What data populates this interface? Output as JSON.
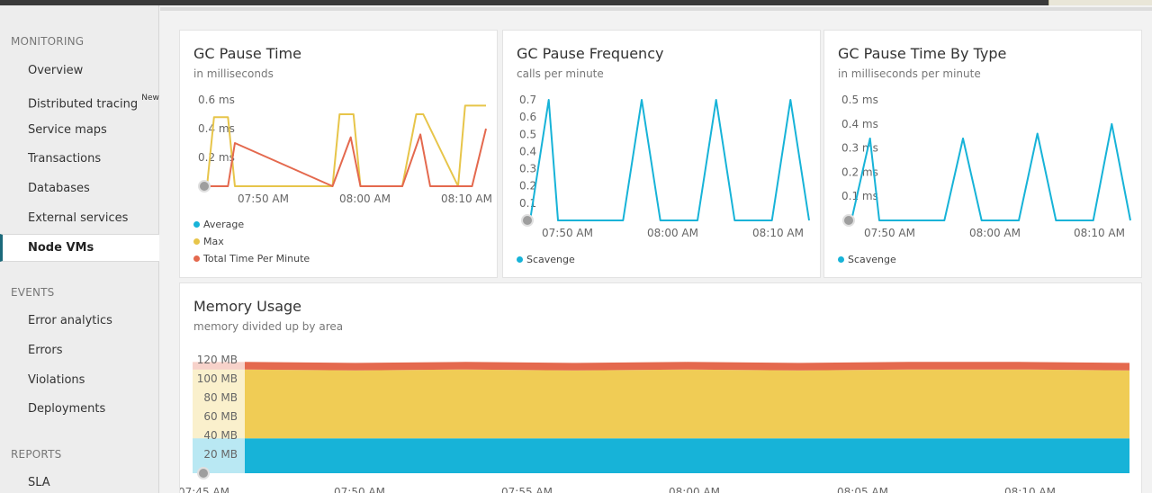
{
  "sidebar": {
    "sections": [
      {
        "title": "MONITORING",
        "items": [
          {
            "label": "Overview"
          },
          {
            "label": "Distributed tracing",
            "badge": "New"
          },
          {
            "label": "Service maps"
          },
          {
            "label": "Transactions"
          },
          {
            "label": "Databases"
          },
          {
            "label": "External services"
          },
          {
            "label": "Node VMs",
            "active": true
          }
        ]
      },
      {
        "title": "EVENTS",
        "items": [
          {
            "label": "Error analytics"
          },
          {
            "label": "Errors"
          },
          {
            "label": "Violations"
          },
          {
            "label": "Deployments"
          }
        ]
      },
      {
        "title": "REPORTS",
        "items": [
          {
            "label": "SLA"
          }
        ]
      }
    ]
  },
  "charts": {
    "gc_pause_time": {
      "title": "GC Pause Time",
      "subtitle": "in milliseconds"
    },
    "gc_pause_frequency": {
      "title": "GC Pause Frequency",
      "subtitle": "calls per minute"
    },
    "gc_pause_by_type": {
      "title": "GC Pause Time By Type",
      "subtitle": "in milliseconds per minute"
    },
    "memory_usage": {
      "title": "Memory Usage",
      "subtitle": "memory divided up by area"
    }
  },
  "chart_data": [
    {
      "id": "gc_pause_time",
      "type": "line",
      "title": "GC Pause Time",
      "subtitle": "in milliseconds",
      "x_ticks": [
        "07:50 AM",
        "08:00 AM",
        "08:10 AM"
      ],
      "y_ticks": [
        "0.2 ms",
        "0.4 ms",
        "0.6 ms"
      ],
      "ylim": [
        0,
        0.6
      ],
      "series": [
        {
          "name": "Average",
          "color": "#17b3d8",
          "x": [],
          "values": []
        },
        {
          "name": "Max",
          "color": "#e7c54a",
          "x": [
            0,
            0.5,
            1,
            1.5,
            2,
            9,
            9.5,
            10.5,
            11,
            14,
            15,
            15.5,
            18,
            18.5,
            19.5,
            20
          ],
          "values": [
            0,
            0.48,
            0.48,
            0.48,
            0,
            0,
            0.5,
            0.5,
            0,
            0,
            0.5,
            0.5,
            0,
            0.56,
            0.56,
            0.56
          ]
        },
        {
          "name": "Total Time Per Minute",
          "color": "#e4694e",
          "x": [
            0,
            1.5,
            2,
            9,
            10.3,
            11,
            14,
            15.3,
            16,
            19,
            20
          ],
          "values": [
            0,
            0,
            0.3,
            0,
            0.34,
            0,
            0,
            0.36,
            0,
            0,
            0.4
          ]
        }
      ]
    },
    {
      "id": "gc_pause_frequency",
      "type": "line",
      "title": "GC Pause Frequency",
      "subtitle": "calls per minute",
      "x_ticks": [
        "07:50 AM",
        "08:00 AM",
        "08:10 AM"
      ],
      "y_ticks": [
        "0.1",
        "0.2",
        "0.3",
        "0.4",
        "0.5",
        "0.6",
        "0.7"
      ],
      "ylim": [
        0,
        0.7
      ],
      "series": [
        {
          "name": "Scavenge",
          "color": "#17b3d8",
          "x": [
            0,
            1,
            1.5,
            5,
            6,
            7,
            9,
            10,
            11,
            13,
            14,
            15
          ],
          "values": [
            0,
            0.7,
            0,
            0,
            0.7,
            0,
            0,
            0.7,
            0,
            0,
            0.7,
            0
          ]
        }
      ]
    },
    {
      "id": "gc_pause_by_type",
      "type": "line",
      "title": "GC Pause Time By Type",
      "subtitle": "in milliseconds per minute",
      "x_ticks": [
        "07:50 AM",
        "08:00 AM",
        "08:10 AM"
      ],
      "y_ticks": [
        "0.1 ms",
        "0.2 ms",
        "0.3 ms",
        "0.4 ms",
        "0.5 ms"
      ],
      "ylim": [
        0,
        0.5
      ],
      "series": [
        {
          "name": "Scavenge",
          "color": "#17b3d8",
          "x": [
            0,
            1,
            1.5,
            5,
            6,
            7,
            9,
            10,
            11,
            13,
            14,
            15
          ],
          "values": [
            0,
            0.34,
            0,
            0,
            0.34,
            0,
            0,
            0.36,
            0,
            0,
            0.4,
            0
          ]
        }
      ]
    },
    {
      "id": "memory_usage",
      "type": "area",
      "title": "Memory Usage",
      "subtitle": "memory divided up by area",
      "x_ticks": [
        "07:45 AM",
        "07:50 AM",
        "07:55 AM",
        "08:00 AM",
        "08:05 AM",
        "08:10 AM"
      ],
      "y_ticks": [
        "20 MB",
        "40 MB",
        "60 MB",
        "80 MB",
        "100 MB",
        "120 MB"
      ],
      "ylim": [
        0,
        125
      ],
      "series": [
        {
          "name": "",
          "color": "#17b3d8",
          "values": [
            37,
            37,
            37,
            37,
            37,
            37,
            37,
            37,
            37
          ]
        },
        {
          "name": "",
          "color": "#f0cc55",
          "values": [
            73,
            72,
            73,
            72,
            73,
            72,
            73,
            73,
            72
          ]
        },
        {
          "name": "",
          "color": "#e4694e",
          "values": [
            8,
            8,
            8,
            8,
            8,
            8,
            8,
            8,
            8
          ]
        }
      ]
    }
  ]
}
